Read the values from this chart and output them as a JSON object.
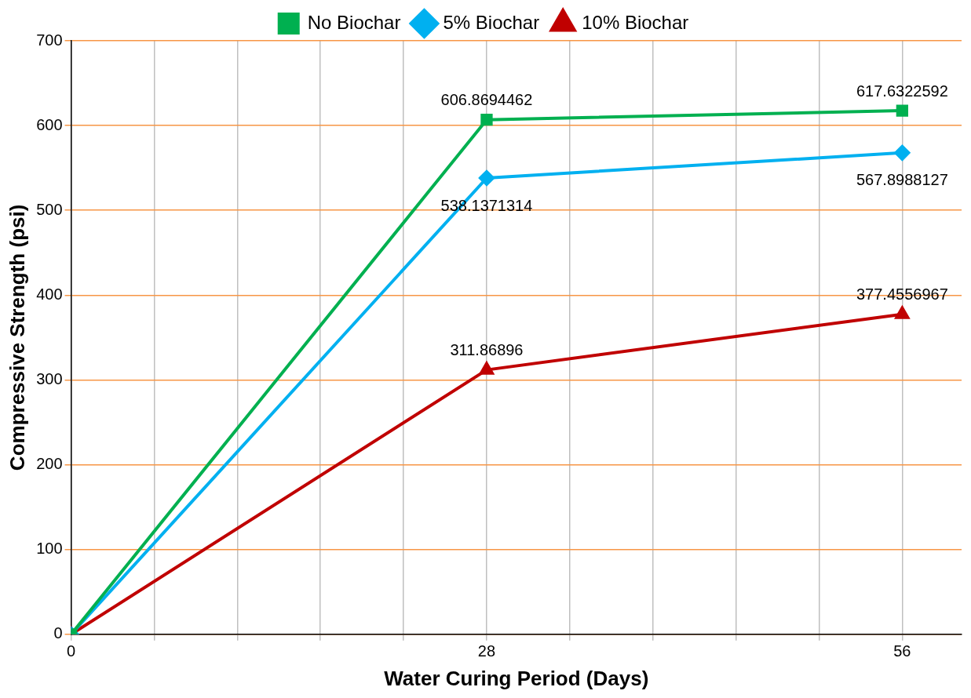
{
  "chart_data": {
    "type": "line",
    "xlabel": "Water Curing Period (Days)",
    "ylabel": "Compressive Strength (psi)",
    "x": [
      0,
      28,
      56
    ],
    "xlim": [
      0,
      60
    ],
    "xticks": [
      0,
      {
        "value": 5.6,
        "label": null
      },
      {
        "value": 11.2,
        "label": null
      },
      {
        "value": 16.8,
        "label": null
      },
      {
        "value": 22.4,
        "label": null
      },
      28,
      {
        "value": 33.6,
        "label": null
      },
      {
        "value": 39.2,
        "label": null
      },
      {
        "value": 44.8,
        "label": null
      },
      {
        "value": 50.4,
        "label": null
      },
      56
    ],
    "ylim": [
      0,
      700
    ],
    "yticks": [
      0,
      100,
      200,
      300,
      400,
      500,
      600,
      700
    ],
    "grid": true,
    "legend": "top",
    "series": [
      {
        "name": "No Biochar",
        "color": "#00b050",
        "marker": "square",
        "values": [
          0,
          606.8694462,
          617.6322592
        ],
        "value_labels": [
          null,
          "606.8694462",
          "617.6322592"
        ]
      },
      {
        "name": "5% Biochar",
        "color": "#00b0f0",
        "marker": "diamond",
        "values": [
          0,
          538.1371314,
          567.8988127
        ],
        "value_labels": [
          null,
          "538.1371314",
          "567.8988127"
        ]
      },
      {
        "name": "10% Biochar",
        "color": "#c00000",
        "marker": "triangle",
        "values": [
          0,
          311.86896,
          377.4556967
        ],
        "value_labels": [
          null,
          "311.86896",
          "377.4556967"
        ]
      }
    ]
  }
}
